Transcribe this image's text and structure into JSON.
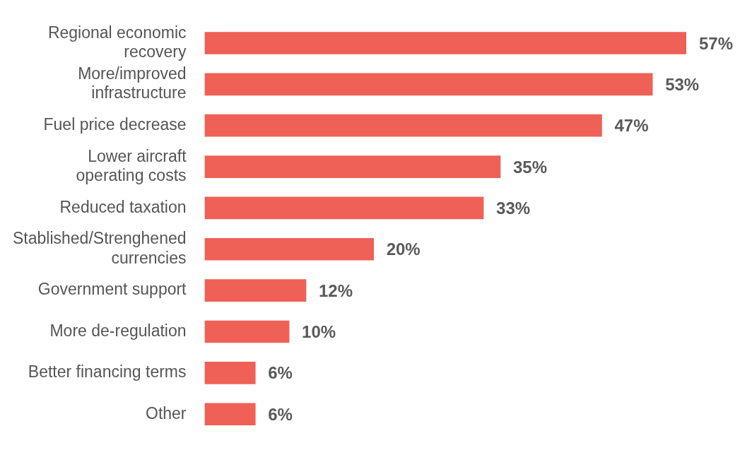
{
  "chart_data": {
    "type": "bar",
    "orientation": "horizontal",
    "categories": [
      "Regional economic recovery",
      "More/improved infrastructure",
      "Fuel price decrease",
      "Lower aircraft operating costs",
      "Reduced taxation",
      "Stablished/Strenghened currencies",
      "Government support",
      "More de-regulation",
      "Better financing terms",
      "Other"
    ],
    "values": [
      57,
      53,
      47,
      35,
      33,
      20,
      12,
      10,
      6,
      6
    ],
    "value_labels": [
      "57%",
      "53%",
      "47%",
      "35%",
      "33%",
      "20%",
      "12%",
      "10%",
      "6%",
      "6%"
    ],
    "color": "#ef6056",
    "legend": false,
    "tick_labels": "y"
  }
}
